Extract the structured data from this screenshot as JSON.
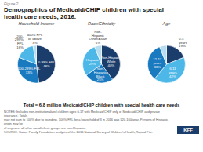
{
  "title": "Demographics of Medicaid/CHIP children with special\nhealth care needs, 2016.",
  "subtitle": "Total = 6.8 million Medicaid/CHIP children with special health care needs",
  "annotations": [
    "Figure 2",
    "NOTES: Includes non-institutionalized children ages 0-17 with Medicaid/CHIP only or Medicaid/CHIP and private insurance. Totals\nmay not sum to 100% due to rounding. 100% FPL for a household of 3 in 2016 was $20,160/year. Persons of Hispanic origin may be\nof any race; all other racial/ethnic groups are non-Hispanic.\nSOURCE: Kaiser Family Foundation analysis of the 2016 National Survey of Children's Health, Topical File.",
    "KFF"
  ],
  "chart_data": [
    {
      "type": "pie",
      "title": "Household Income",
      "categories": [
        "0-99% FPL",
        "100-299% FPL",
        "200-\n299%\nFPL",
        "400% FPL\nor above"
      ],
      "values": [
        48,
        33,
        16,
        3
      ],
      "value_labels": [
        "48%",
        "33%",
        "16%",
        "3%"
      ],
      "colors": [
        "#1b3d6b",
        "#1a7abf",
        "#4db8e8",
        "#b8ddf0"
      ],
      "data_labels": true
    },
    {
      "type": "pie",
      "title": "Race/Ethnicity",
      "categories": [
        "Non-Hispanic\nWhite",
        "Non-\nHispanic\nBlack",
        "Hispanic",
        "Non-\nHispanic\nOther/Asian"
      ],
      "values": [
        40,
        25,
        29,
        6
      ],
      "value_labels": [
        "40%",
        "25%",
        "29%",
        "6%"
      ],
      "colors": [
        "#1b3d6b",
        "#1a7abf",
        "#4db8e8",
        "#b8ddf0"
      ],
      "data_labels": true
    },
    {
      "type": "pie",
      "title": "Age",
      "categories": [
        "0-5\nyears",
        "6-11\nyears",
        "12-17\nyears",
        null
      ],
      "values": [
        19,
        42,
        33,
        6
      ],
      "value_labels": [
        "19%",
        "42%",
        "33%",
        null
      ],
      "colors": [
        "#1b3d6b",
        "#4db8e8",
        "#1a7abf",
        "#b8ddf0"
      ],
      "data_labels": true
    }
  ]
}
